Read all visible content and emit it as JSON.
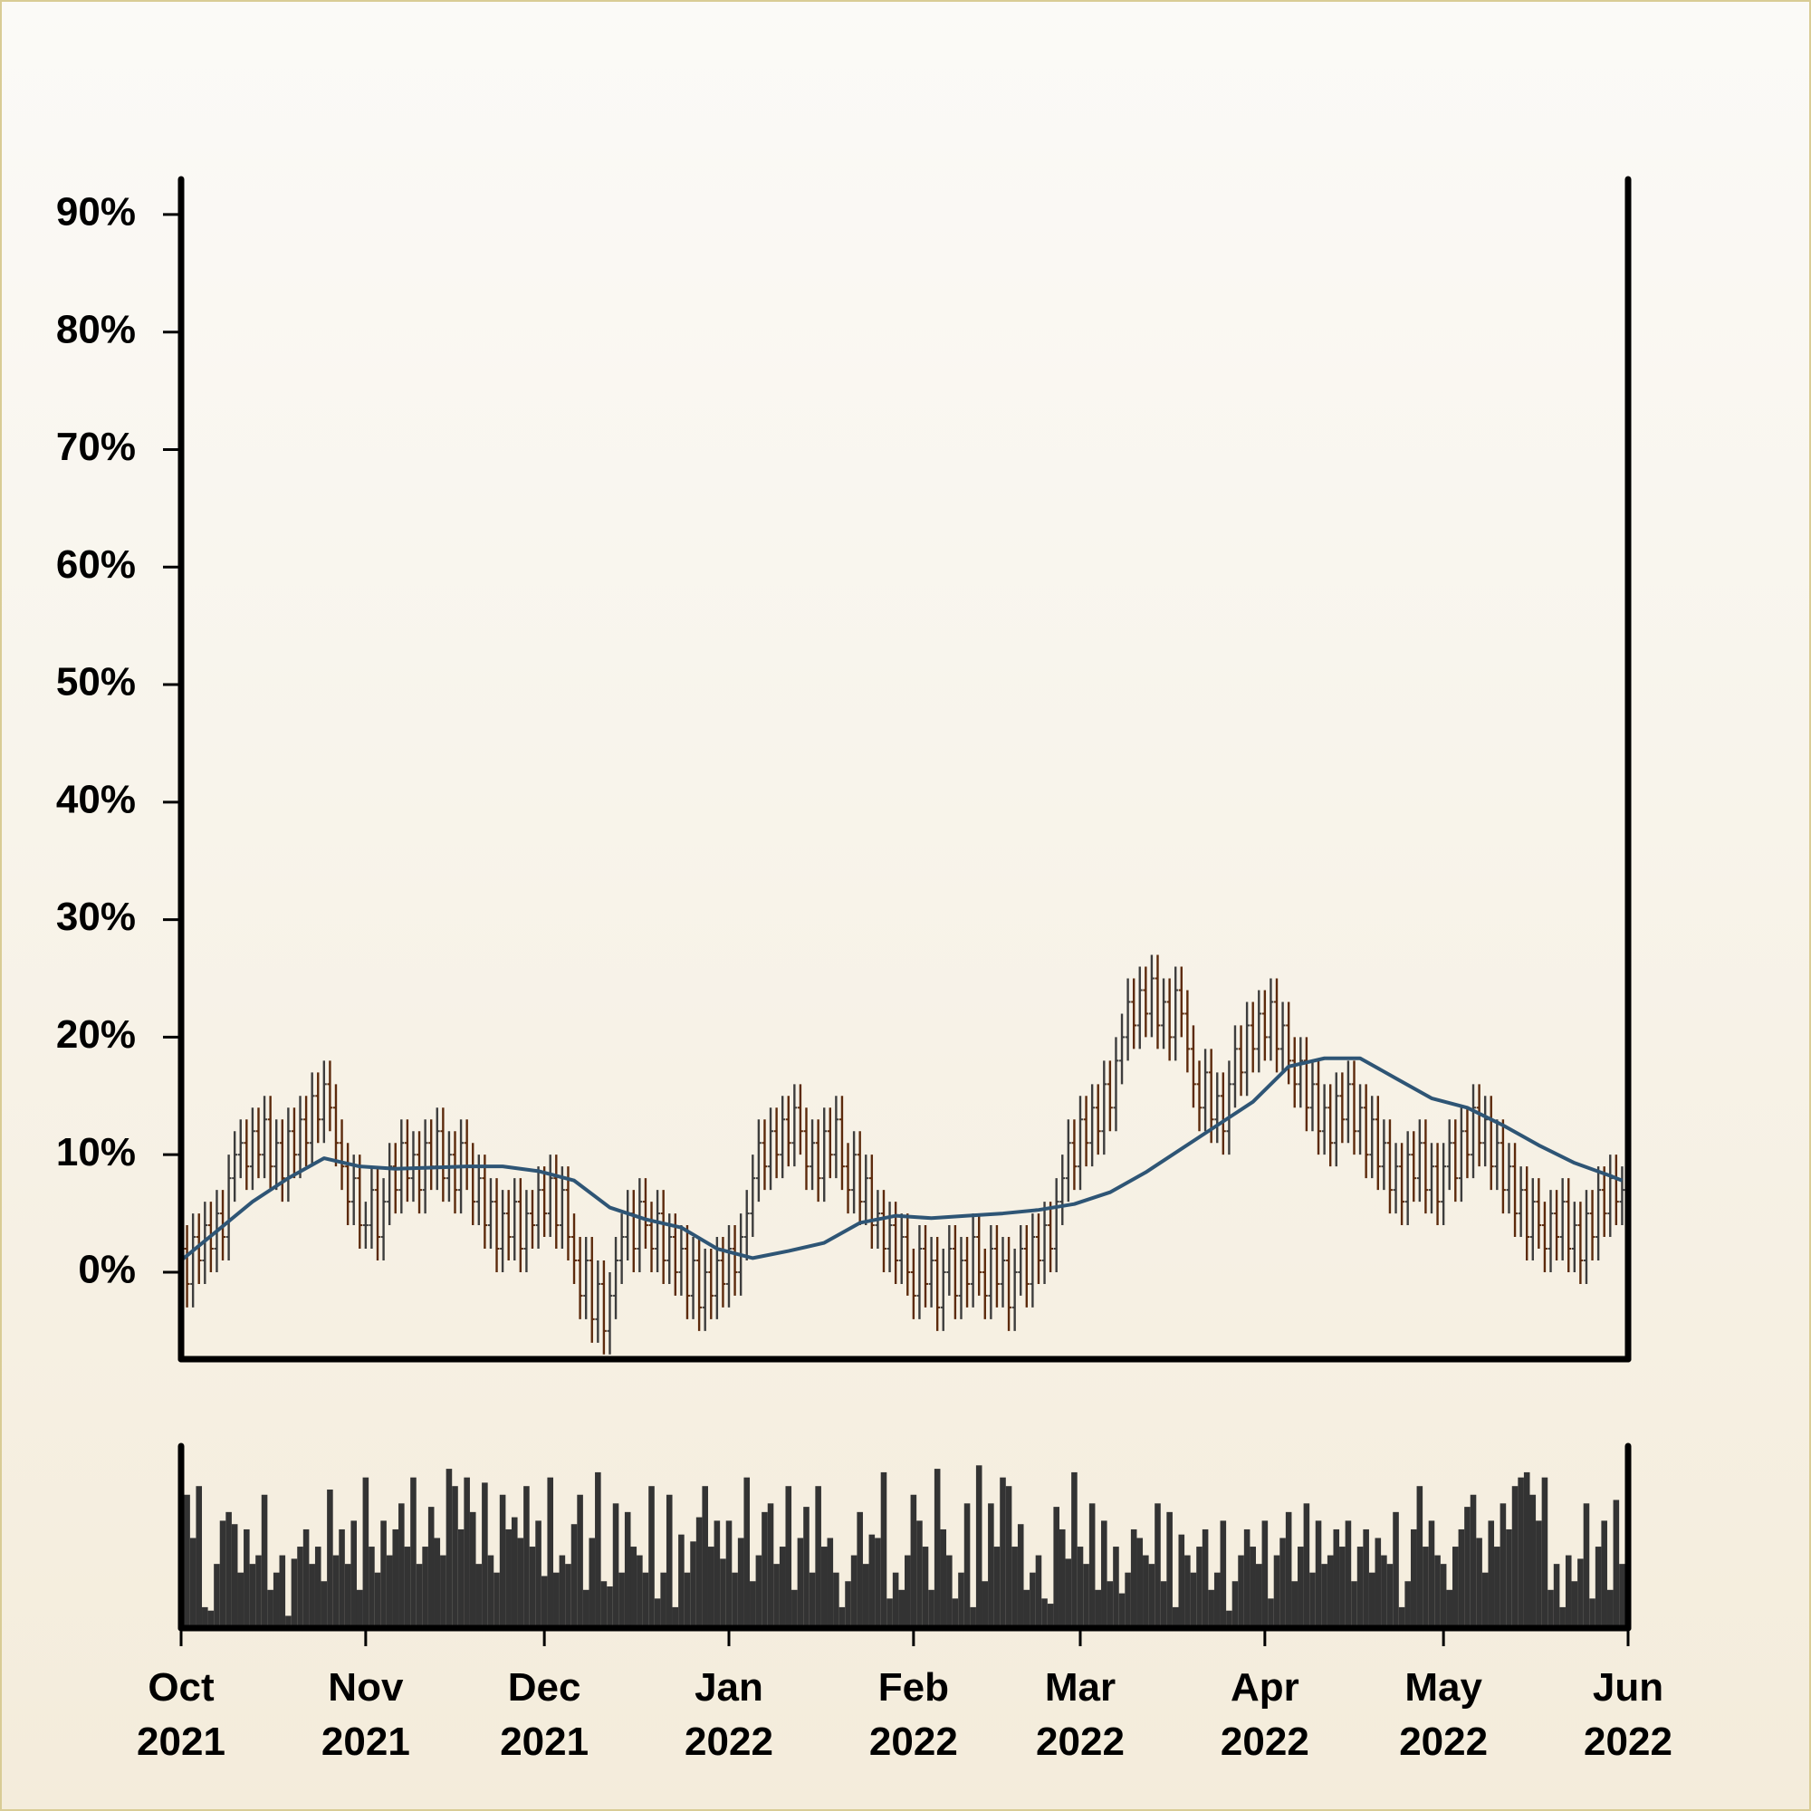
{
  "chart_data": {
    "type": "ohlc",
    "x": [
      0,
      1,
      2,
      3,
      4,
      5,
      6,
      7,
      8,
      9,
      10,
      11,
      12,
      13,
      14,
      15,
      16,
      17,
      18,
      19,
      20,
      21,
      22,
      23,
      24,
      25,
      26,
      27,
      28,
      29,
      30,
      31,
      32,
      33,
      34,
      35,
      36,
      37,
      38,
      39,
      40,
      41,
      42,
      43,
      44,
      45,
      46,
      47,
      48,
      49,
      50,
      51,
      52,
      53,
      54,
      55,
      56,
      57,
      58,
      59,
      60,
      61,
      62,
      63,
      64,
      65,
      66,
      67,
      68,
      69,
      70,
      71,
      72,
      73,
      74,
      75,
      76,
      77,
      78,
      79,
      80,
      81,
      82,
      83,
      84,
      85,
      86,
      87,
      88,
      89,
      90,
      91,
      92,
      93,
      94,
      95,
      96,
      97,
      98,
      99,
      100,
      101,
      102,
      103,
      104,
      105,
      106,
      107,
      108,
      109,
      110,
      111,
      112,
      113,
      114,
      115,
      116,
      117,
      118,
      119,
      120,
      121,
      122,
      123,
      124,
      125,
      126,
      127,
      128,
      129,
      130,
      131,
      132,
      133,
      134,
      135,
      136,
      137,
      138,
      139,
      140,
      141,
      142,
      143,
      144,
      145,
      146,
      147,
      148,
      149,
      150,
      151,
      152,
      153,
      154,
      155,
      156,
      157,
      158,
      159,
      160,
      161,
      162,
      163,
      164,
      165,
      166,
      167,
      168,
      169,
      170,
      171,
      172,
      173,
      174,
      175,
      176,
      177,
      178,
      179,
      180,
      181,
      182,
      183,
      184,
      185,
      186,
      187,
      188,
      189,
      190,
      191,
      192,
      193,
      194,
      195,
      196,
      197,
      198,
      199,
      200,
      201,
      202,
      203,
      204,
      205,
      206,
      207,
      208,
      209,
      210,
      211,
      212,
      213,
      214,
      215,
      216,
      217,
      218,
      219,
      220,
      221,
      222,
      223,
      224,
      225,
      226,
      227,
      228,
      229,
      230,
      231,
      232,
      233,
      234,
      235,
      236,
      237,
      238,
      239,
      240,
      241,
      242
    ],
    "open": [
      4,
      2,
      -1,
      3,
      1,
      4,
      2,
      5,
      3,
      8,
      10,
      11,
      9,
      12,
      10,
      13,
      9,
      11,
      8,
      12,
      10,
      13,
      11,
      15,
      13,
      16,
      14,
      11,
      9,
      6,
      8,
      4,
      4,
      7,
      3,
      6,
      9,
      7,
      11,
      8,
      10,
      7,
      11,
      9,
      12,
      8,
      10,
      7,
      11,
      9,
      6,
      8,
      4,
      6,
      2,
      5,
      3,
      6,
      2,
      5,
      4,
      7,
      5,
      8,
      4,
      7,
      3,
      1,
      -2,
      1,
      -4,
      -1,
      -5,
      -2,
      1,
      3,
      5,
      2,
      6,
      4,
      2,
      5,
      1,
      3,
      0,
      2,
      -2,
      1,
      -3,
      0,
      -2,
      1,
      -1,
      2,
      0,
      3,
      5,
      8,
      11,
      9,
      12,
      10,
      13,
      11,
      14,
      12,
      9,
      11,
      8,
      12,
      10,
      13,
      9,
      7,
      10,
      6,
      8,
      4,
      5,
      2,
      4,
      1,
      3,
      0,
      -2,
      2,
      -1,
      1,
      -3,
      0,
      2,
      -2,
      1,
      -1,
      3,
      0,
      -2,
      2,
      -1,
      1,
      -3,
      0,
      2,
      -1,
      3,
      1,
      4,
      2,
      6,
      8,
      11,
      9,
      13,
      11,
      14,
      12,
      16,
      14,
      18,
      20,
      23,
      21,
      24,
      22,
      25,
      21,
      23,
      20,
      24,
      22,
      19,
      16,
      14,
      17,
      13,
      15,
      12,
      16,
      19,
      17,
      21,
      19,
      22,
      20,
      23,
      19,
      21,
      18,
      16,
      18,
      14,
      16,
      12,
      14,
      11,
      15,
      13,
      16,
      12,
      14,
      10,
      13,
      9,
      11,
      7,
      9,
      6,
      10,
      8,
      11,
      7,
      9,
      6,
      9,
      11,
      8,
      12,
      10,
      14,
      11,
      13,
      9,
      11,
      7,
      9,
      5,
      7,
      3,
      6,
      4,
      2,
      5,
      3,
      6,
      2,
      4,
      1,
      5,
      3,
      7,
      5,
      8,
      6
    ],
    "high": [
      6,
      4,
      5,
      5,
      6,
      6,
      7,
      7,
      10,
      12,
      13,
      13,
      14,
      14,
      15,
      15,
      13,
      13,
      14,
      14,
      15,
      15,
      17,
      17,
      18,
      18,
      16,
      13,
      11,
      10,
      10,
      6,
      9,
      9,
      8,
      11,
      11,
      13,
      13,
      12,
      12,
      13,
      13,
      14,
      14,
      12,
      12,
      13,
      13,
      11,
      10,
      10,
      8,
      8,
      7,
      7,
      8,
      8,
      7,
      7,
      9,
      9,
      10,
      10,
      9,
      9,
      5,
      3,
      3,
      3,
      1,
      1,
      0,
      3,
      5,
      7,
      7,
      8,
      8,
      6,
      7,
      7,
      5,
      5,
      4,
      4,
      3,
      3,
      2,
      2,
      3,
      3,
      4,
      4,
      5,
      7,
      10,
      13,
      13,
      14,
      14,
      15,
      15,
      16,
      16,
      14,
      13,
      13,
      14,
      14,
      15,
      15,
      11,
      12,
      12,
      10,
      10,
      7,
      7,
      6,
      6,
      5,
      5,
      2,
      4,
      4,
      3,
      3,
      2,
      4,
      4,
      3,
      3,
      5,
      5,
      2,
      4,
      4,
      3,
      3,
      2,
      4,
      4,
      5,
      5,
      6,
      6,
      8,
      10,
      13,
      13,
      15,
      15,
      16,
      16,
      18,
      18,
      20,
      22,
      25,
      25,
      26,
      26,
      27,
      27,
      25,
      25,
      26,
      26,
      24,
      21,
      18,
      19,
      19,
      17,
      17,
      18,
      21,
      21,
      23,
      23,
      24,
      24,
      25,
      25,
      23,
      23,
      20,
      20,
      20,
      18,
      18,
      16,
      16,
      17,
      17,
      18,
      18,
      16,
      16,
      15,
      15,
      13,
      13,
      11,
      11,
      12,
      12,
      13,
      13,
      11,
      11,
      11,
      13,
      13,
      14,
      14,
      16,
      16,
      15,
      15,
      13,
      13,
      11,
      11,
      9,
      9,
      8,
      8,
      6,
      7,
      7,
      8,
      8,
      6,
      6,
      7,
      7,
      9,
      9,
      10,
      10,
      9
    ],
    "low": [
      0,
      -3,
      -3,
      -1,
      -1,
      0,
      0,
      1,
      1,
      6,
      8,
      7,
      7,
      8,
      8,
      7,
      7,
      6,
      6,
      8,
      8,
      9,
      9,
      11,
      11,
      12,
      9,
      7,
      4,
      4,
      2,
      2,
      2,
      1,
      1,
      4,
      5,
      5,
      6,
      6,
      5,
      5,
      7,
      7,
      6,
      6,
      5,
      5,
      7,
      4,
      4,
      2,
      2,
      0,
      0,
      1,
      1,
      0,
      0,
      2,
      2,
      3,
      3,
      2,
      2,
      1,
      -1,
      -4,
      -4,
      -6,
      -6,
      -7,
      -7,
      -4,
      -1,
      1,
      0,
      0,
      2,
      0,
      0,
      -1,
      -1,
      -2,
      -2,
      -4,
      -4,
      -5,
      -5,
      -4,
      -4,
      -3,
      -3,
      -2,
      -2,
      1,
      3,
      6,
      7,
      7,
      8,
      8,
      9,
      9,
      10,
      7,
      7,
      6,
      6,
      8,
      8,
      7,
      5,
      5,
      4,
      4,
      2,
      2,
      0,
      0,
      -1,
      -1,
      -2,
      -4,
      -4,
      -3,
      -3,
      -5,
      -5,
      -2,
      -4,
      -4,
      -3,
      -3,
      -2,
      -4,
      -4,
      -3,
      -3,
      -5,
      -5,
      -2,
      -3,
      -3,
      -1,
      -1,
      0,
      0,
      4,
      6,
      7,
      7,
      9,
      9,
      10,
      10,
      12,
      12,
      16,
      18,
      19,
      19,
      20,
      20,
      19,
      19,
      18,
      18,
      20,
      17,
      14,
      12,
      12,
      11,
      11,
      10,
      10,
      14,
      15,
      15,
      17,
      17,
      18,
      18,
      17,
      17,
      16,
      14,
      14,
      12,
      12,
      10,
      10,
      9,
      9,
      11,
      11,
      10,
      10,
      8,
      8,
      7,
      7,
      5,
      5,
      4,
      4,
      6,
      6,
      5,
      5,
      4,
      4,
      7,
      6,
      6,
      8,
      8,
      9,
      9,
      7,
      7,
      5,
      5,
      3,
      3,
      1,
      1,
      2,
      0,
      0,
      1,
      1,
      0,
      0,
      -1,
      -1,
      1,
      1,
      3,
      3,
      4,
      4
    ],
    "close": [
      2,
      -1,
      3,
      1,
      4,
      2,
      5,
      3,
      8,
      10,
      11,
      9,
      12,
      10,
      13,
      9,
      11,
      8,
      12,
      10,
      13,
      11,
      15,
      13,
      16,
      14,
      11,
      9,
      6,
      8,
      4,
      4,
      7,
      3,
      6,
      9,
      7,
      11,
      8,
      10,
      7,
      11,
      9,
      12,
      8,
      10,
      7,
      11,
      9,
      6,
      8,
      4,
      6,
      2,
      5,
      3,
      6,
      2,
      5,
      4,
      7,
      5,
      8,
      4,
      7,
      3,
      1,
      -2,
      1,
      -4,
      -1,
      -5,
      -2,
      1,
      3,
      5,
      2,
      6,
      4,
      2,
      5,
      1,
      3,
      0,
      2,
      -2,
      1,
      -3,
      0,
      -2,
      1,
      -1,
      2,
      0,
      3,
      5,
      8,
      11,
      9,
      12,
      10,
      13,
      11,
      14,
      12,
      9,
      11,
      8,
      12,
      10,
      13,
      9,
      7,
      10,
      6,
      8,
      4,
      5,
      2,
      4,
      1,
      3,
      0,
      -2,
      2,
      -1,
      1,
      -3,
      0,
      2,
      -2,
      1,
      -1,
      3,
      0,
      -2,
      2,
      -1,
      1,
      -3,
      0,
      2,
      -1,
      3,
      1,
      4,
      2,
      6,
      8,
      11,
      9,
      13,
      11,
      14,
      12,
      16,
      14,
      18,
      20,
      23,
      21,
      24,
      22,
      25,
      21,
      23,
      20,
      24,
      22,
      19,
      16,
      14,
      17,
      13,
      15,
      12,
      16,
      19,
      17,
      21,
      19,
      22,
      20,
      23,
      19,
      21,
      18,
      16,
      18,
      14,
      16,
      12,
      14,
      11,
      15,
      13,
      16,
      12,
      14,
      10,
      13,
      9,
      11,
      7,
      9,
      6,
      10,
      8,
      11,
      7,
      9,
      6,
      9,
      11,
      8,
      12,
      10,
      14,
      11,
      13,
      9,
      11,
      7,
      9,
      5,
      7,
      3,
      6,
      4,
      2,
      5,
      3,
      6,
      2,
      4,
      1,
      5,
      3,
      7,
      5,
      8,
      6,
      7
    ],
    "up_color": "#3d3d3d",
    "down_color": "#5c2a0c",
    "ma": {
      "color": "#2e5575",
      "x": [
        0,
        6,
        12,
        18,
        24,
        30,
        36,
        42,
        48,
        54,
        60,
        66,
        72,
        78,
        84,
        90,
        96,
        102,
        108,
        114,
        120,
        126,
        132,
        138,
        144,
        150,
        156,
        162,
        168,
        174,
        180,
        186,
        192,
        198,
        204,
        210,
        216,
        222,
        228,
        234,
        240,
        242
      ],
      "values": [
        1,
        3.5,
        6,
        8,
        9.7,
        9,
        8.8,
        8.9,
        9,
        9,
        8.6,
        7.8,
        5.5,
        4.5,
        3.8,
        2,
        1.2,
        1.8,
        2.5,
        4.2,
        4.8,
        4.6,
        4.8,
        5,
        5.3,
        5.8,
        6.8,
        8.5,
        10.5,
        12.5,
        14.5,
        17.5,
        18.2,
        18.2,
        16.5,
        14.8,
        14,
        12.5,
        10.8,
        9.3,
        8.2,
        7.8
      ]
    },
    "volume": {
      "color": "#333333",
      "ylim": [
        0,
        100
      ],
      "values": [
        40,
        75,
        50,
        80,
        10,
        8,
        35,
        60,
        65,
        58,
        30,
        55,
        35,
        40,
        75,
        20,
        30,
        40,
        5,
        38,
        45,
        55,
        35,
        45,
        25,
        78,
        40,
        55,
        35,
        60,
        20,
        85,
        45,
        30,
        60,
        40,
        55,
        70,
        45,
        85,
        35,
        45,
        68,
        50,
        40,
        90,
        80,
        55,
        85,
        65,
        35,
        82,
        40,
        30,
        75,
        55,
        62,
        50,
        80,
        45,
        60,
        28,
        85,
        30,
        40,
        35,
        58,
        75,
        20,
        50,
        88,
        25,
        22,
        70,
        30,
        65,
        45,
        40,
        30,
        80,
        15,
        30,
        75,
        10,
        52,
        30,
        48,
        62,
        80,
        45,
        60,
        38,
        60,
        30,
        50,
        85,
        25,
        40,
        65,
        70,
        35,
        45,
        80,
        20,
        50,
        68,
        30,
        80,
        45,
        50,
        30,
        10,
        25,
        40,
        65,
        35,
        52,
        50,
        88,
        15,
        30,
        20,
        40,
        75,
        60,
        45,
        20,
        90,
        55,
        40,
        15,
        30,
        70,
        10,
        92,
        25,
        70,
        45,
        85,
        80,
        45,
        58,
        20,
        30,
        40,
        15,
        12,
        68,
        55,
        38,
        88,
        45,
        35,
        70,
        20,
        60,
        25,
        45,
        18,
        30,
        55,
        50,
        40,
        35,
        70,
        25,
        65,
        10,
        52,
        40,
        30,
        45,
        55,
        20,
        30,
        60,
        8,
        25,
        40,
        55,
        45,
        35,
        60,
        15,
        40,
        50,
        65,
        25,
        45,
        70,
        30,
        60,
        35,
        40,
        55,
        45,
        60,
        25,
        45,
        55,
        30,
        50,
        40,
        35,
        65,
        10,
        25,
        55,
        80,
        45,
        60,
        40,
        35,
        20,
        45,
        55,
        68,
        75,
        50,
        30,
        60,
        45,
        70,
        55,
        80,
        85,
        88,
        75,
        60,
        85,
        20,
        35,
        10,
        40,
        25,
        38,
        70,
        15,
        45,
        60,
        20,
        72,
        35
      ]
    },
    "xlim": [
      0,
      243
    ],
    "xticks": [
      {
        "value": 0,
        "label": "Oct\n2021"
      },
      {
        "value": 31,
        "label": "Nov\n2021"
      },
      {
        "value": 61,
        "label": "Dec\n2021"
      },
      {
        "value": 92,
        "label": "Jan\n2022"
      },
      {
        "value": 123,
        "label": "Feb\n2022"
      },
      {
        "value": 151,
        "label": "Mar\n2022"
      },
      {
        "value": 182,
        "label": "Apr\n2022"
      },
      {
        "value": 212,
        "label": "May\n2022"
      },
      {
        "value": 243,
        "label": "Jun\n2022"
      }
    ],
    "ylim": [
      -7.4,
      93
    ],
    "yticks": [
      {
        "value": 0,
        "label": "0%"
      },
      {
        "value": 10,
        "label": "10%"
      },
      {
        "value": 20,
        "label": "20%"
      },
      {
        "value": 30,
        "label": "30%"
      },
      {
        "value": 40,
        "label": "40%"
      },
      {
        "value": 50,
        "label": "50%"
      },
      {
        "value": 60,
        "label": "60%"
      },
      {
        "value": 70,
        "label": "70%"
      },
      {
        "value": 80,
        "label": "80%"
      },
      {
        "value": 90,
        "label": "90%"
      }
    ]
  }
}
